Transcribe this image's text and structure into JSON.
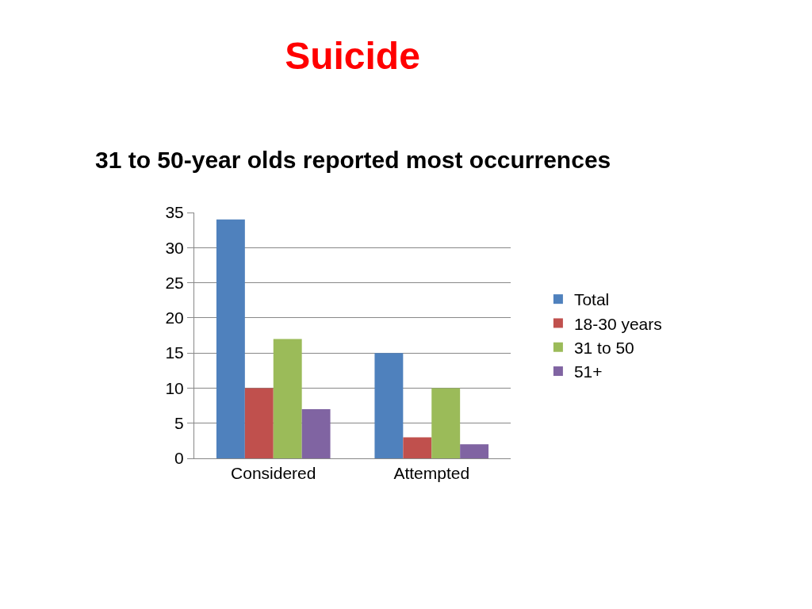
{
  "chart_data": {
    "type": "bar",
    "title": "Suicide",
    "subtitle": "31 to 50-year olds reported most occurrences",
    "categories": [
      "Considered",
      "Attempted"
    ],
    "series": [
      {
        "name": "Total",
        "color": "#4f81bd",
        "values": [
          34,
          15
        ]
      },
      {
        "name": "18-30 years",
        "color": "#c0504d",
        "values": [
          10,
          3
        ]
      },
      {
        "name": "31 to 50",
        "color": "#9bbb59",
        "values": [
          17,
          10
        ]
      },
      {
        "name": "51+",
        "color": "#8064a2",
        "values": [
          7,
          2
        ]
      }
    ],
    "ylim": [
      0,
      35
    ],
    "yticks": [
      0,
      5,
      10,
      15,
      20,
      25,
      30,
      35
    ],
    "grid": true,
    "legend": "right"
  }
}
